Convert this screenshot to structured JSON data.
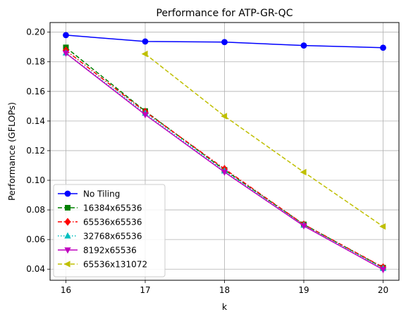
{
  "chart_data": {
    "type": "line",
    "title": "Performance for ATP-GR-QC",
    "xlabel": "k",
    "ylabel": "Performance (GFLOPs)",
    "x": [
      16,
      17,
      18,
      19,
      20
    ],
    "xlim": [
      15.8,
      20.2
    ],
    "ylim": [
      0.0325,
      0.2065
    ],
    "xticks": [
      "16",
      "17",
      "18",
      "19",
      "20"
    ],
    "yticks": [
      "0.04",
      "0.06",
      "0.08",
      "0.10",
      "0.12",
      "0.14",
      "0.16",
      "0.18",
      "0.20"
    ],
    "grid": true,
    "legend_position": "lower-left",
    "series": [
      {
        "name": "No Tiling",
        "color": "#0000ff",
        "dash": "solid",
        "marker": "circle",
        "x": [
          16,
          17,
          18,
          19,
          20
        ],
        "values": [
          0.198,
          0.1937,
          0.1933,
          0.191,
          0.1895
        ]
      },
      {
        "name": "16384x65536",
        "color": "#008000",
        "dash": "dashed",
        "marker": "square",
        "x": [
          16,
          17,
          18,
          19,
          20
        ],
        "values": [
          0.1897,
          0.1467,
          0.107,
          0.0702,
          0.041
        ]
      },
      {
        "name": "65536x65536",
        "color": "#ff0000",
        "dash": "dashdot",
        "marker": "diamond",
        "x": [
          16,
          17,
          18,
          19,
          20
        ],
        "values": [
          0.1877,
          0.1463,
          0.1077,
          0.0702,
          0.0413
        ]
      },
      {
        "name": "32768x65536",
        "color": "#00bfbf",
        "dash": "dotted",
        "marker": "triangle-up",
        "x": [
          16,
          17,
          18,
          19,
          20
        ],
        "values": [
          0.186,
          0.1453,
          0.1063,
          0.0697,
          0.0405
        ]
      },
      {
        "name": "8192x65536",
        "color": "#bf00bf",
        "dash": "solid",
        "marker": "triangle-down",
        "x": [
          16,
          17,
          18,
          19,
          20
        ],
        "values": [
          0.1858,
          0.1443,
          0.1055,
          0.0692,
          0.0397
        ]
      },
      {
        "name": "65536x131072",
        "color": "#bfbf00",
        "dash": "dashed",
        "marker": "triangle-left",
        "x": [
          17,
          18,
          19,
          20
        ],
        "values": [
          0.1853,
          0.1433,
          0.1055,
          0.0688
        ]
      }
    ]
  }
}
